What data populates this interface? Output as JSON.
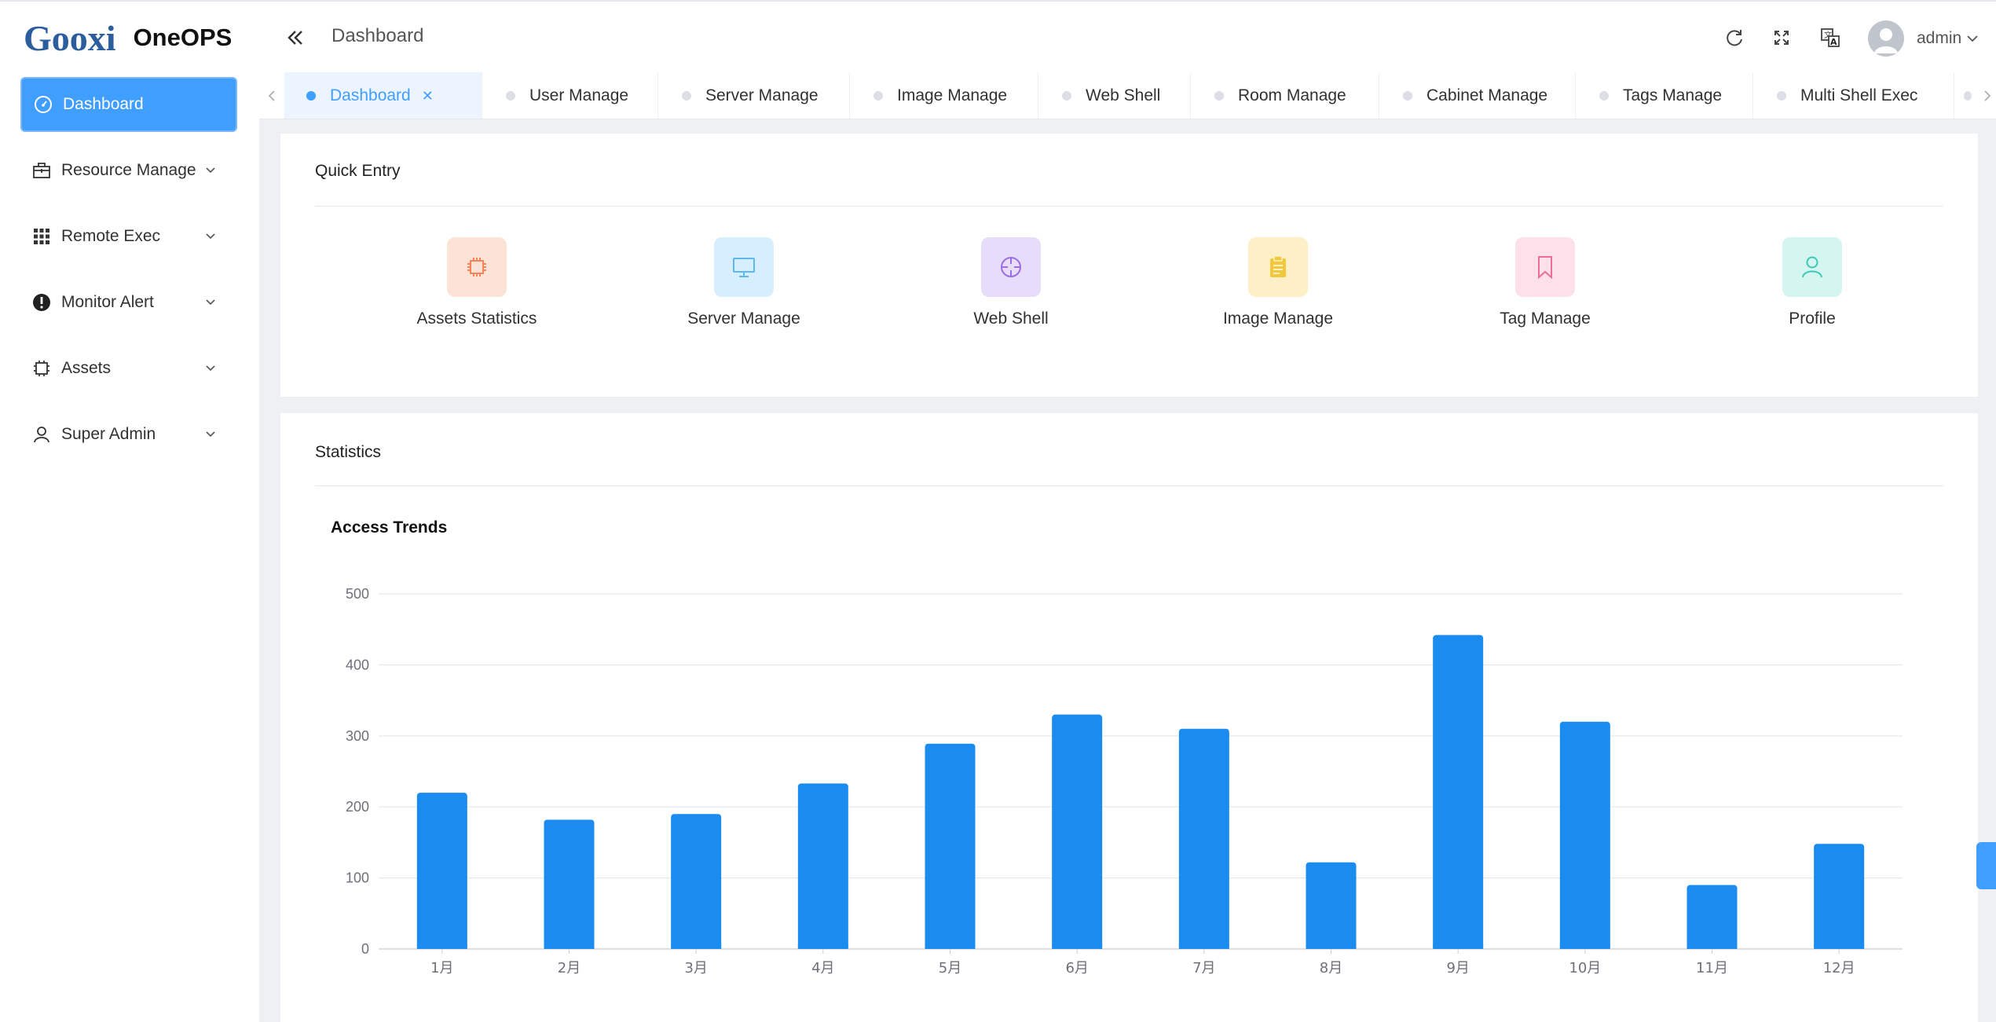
{
  "app": {
    "logo": "Gooxi",
    "name": "OneOPS"
  },
  "header": {
    "title": "Dashboard",
    "user": "admin",
    "icons": [
      "collapse-icon",
      "refresh-icon",
      "fullscreen-icon",
      "translate-icon",
      "user-avatar-icon",
      "chevron-down-icon"
    ]
  },
  "sidebar": {
    "items": [
      {
        "label": "Dashboard",
        "icon": "dashboard-gauge-icon",
        "active": true
      },
      {
        "label": "Resource Manage",
        "icon": "briefcase-icon"
      },
      {
        "label": "Remote Exec",
        "icon": "grid-icon"
      },
      {
        "label": "Monitor Alert",
        "icon": "alert-icon"
      },
      {
        "label": "Assets",
        "icon": "chip-icon"
      },
      {
        "label": "Super Admin",
        "icon": "user-icon"
      }
    ]
  },
  "tabs": [
    {
      "label": "Dashboard",
      "active": true
    },
    {
      "label": "User Manage"
    },
    {
      "label": "Server Manage"
    },
    {
      "label": "Image Manage"
    },
    {
      "label": "Web Shell"
    },
    {
      "label": "Room Manage"
    },
    {
      "label": "Cabinet Manage"
    },
    {
      "label": "Tags Manage"
    },
    {
      "label": "Multi Shell Exec"
    }
  ],
  "quick_entry": {
    "title": "Quick Entry",
    "items": [
      {
        "label": "Assets Statistics",
        "icon": "chip-icon",
        "bg": "#fde2d6",
        "fg": "#f5845a"
      },
      {
        "label": "Server Manage",
        "icon": "monitor-icon",
        "bg": "#d6eefd",
        "fg": "#5cb8ef"
      },
      {
        "label": "Web Shell",
        "icon": "crosshair-icon",
        "bg": "#e8dcfb",
        "fg": "#9b6ee6"
      },
      {
        "label": "Image Manage",
        "icon": "clipboard-icon",
        "bg": "#fdf0c8",
        "fg": "#f2c83c"
      },
      {
        "label": "Tag Manage",
        "icon": "bookmark-icon",
        "bg": "#fde0ea",
        "fg": "#ef6c9a"
      },
      {
        "label": "Profile",
        "icon": "user-icon",
        "bg": "#d4f5f0",
        "fg": "#3dc9b6"
      }
    ]
  },
  "statistics": {
    "title": "Statistics"
  },
  "colors": {
    "accent": "#409eff",
    "bar": "#1a8cf0"
  },
  "chart_data": {
    "type": "bar",
    "title": "Access Trends",
    "categories": [
      "1月",
      "2月",
      "3月",
      "4月",
      "5月",
      "6月",
      "7月",
      "8月",
      "9月",
      "10月",
      "11月",
      "12月"
    ],
    "values": [
      220,
      182,
      190,
      233,
      289,
      330,
      310,
      122,
      442,
      320,
      90,
      148
    ],
    "yticks": [
      0,
      100,
      200,
      300,
      400,
      500
    ],
    "ylim": [
      0,
      500
    ],
    "grid": true
  }
}
